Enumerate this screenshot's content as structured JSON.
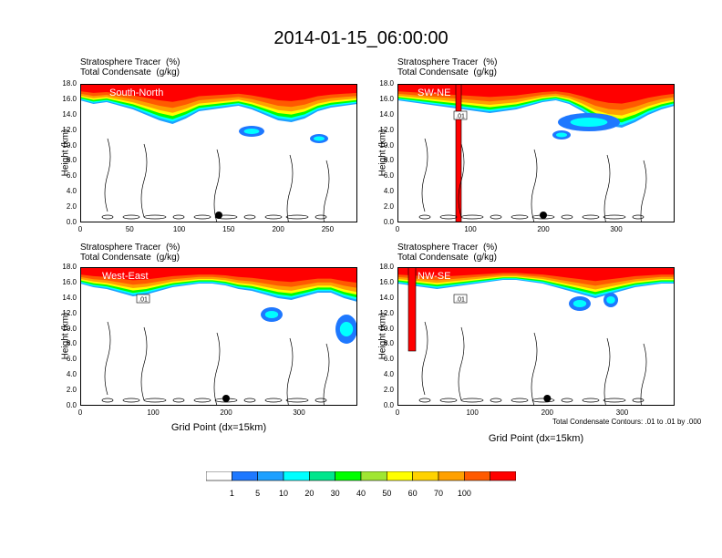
{
  "title": "2014-01-15_06:00:00",
  "panel_titles": {
    "line1": "Stratosphere Tracer",
    "line1_unit": "(%)",
    "line2": "Total Condensate",
    "line2_unit": "(g/kg)"
  },
  "y_axis_label": "Height (km)",
  "x_axis_label": "Grid Point (dx=15km)",
  "contour_note": "Total Condensate Contours: .01 to .01 by .000",
  "colorbar": {
    "labels": [
      "1",
      "5",
      "10",
      "20",
      "30",
      "40",
      "50",
      "60",
      "70",
      "100"
    ],
    "colors": [
      "#ffffff",
      "#1e78ff",
      "#1ea0ff",
      "#00ffff",
      "#00e68c",
      "#00ff00",
      "#a0e632",
      "#ffff00",
      "#ffd200",
      "#ffa000",
      "#ff5a00",
      "#ff0000"
    ]
  },
  "chart_data": [
    {
      "type": "heatmap",
      "region": "South-North",
      "yticks": [
        "0.0",
        "2.0",
        "4.0",
        "6.0",
        "8.0",
        "10.0",
        "12.0",
        "14.0",
        "16.0",
        "18.0"
      ],
      "xticks": [
        "0",
        "50",
        "100",
        "150",
        "200",
        "250"
      ],
      "xlim": [
        0,
        280
      ],
      "ylim": [
        0,
        18
      ],
      "contour_label": "",
      "marker_x": 140
    },
    {
      "type": "heatmap",
      "region": "SW-NE",
      "yticks": [
        "0.0",
        "2.0",
        "4.0",
        "6.0",
        "8.0",
        "10.0",
        "12.0",
        "14.0",
        "16.0",
        "18.0"
      ],
      "xticks": [
        "0",
        "100",
        "200",
        "300"
      ],
      "xlim": [
        0,
        380
      ],
      "ylim": [
        0,
        18
      ],
      "contour_label": ".01",
      "marker_x": 200
    },
    {
      "type": "heatmap",
      "region": "West-East",
      "yticks": [
        "0.0",
        "2.0",
        "4.0",
        "6.0",
        "8.0",
        "10.0",
        "12.0",
        "14.0",
        "16.0",
        "18.0"
      ],
      "xticks": [
        "0",
        "100",
        "200",
        "300"
      ],
      "xlim": [
        0,
        380
      ],
      "ylim": [
        0,
        18
      ],
      "contour_label": ".01",
      "marker_x": 200
    },
    {
      "type": "heatmap",
      "region": "NW-SE",
      "yticks": [
        "0.0",
        "2.0",
        "4.0",
        "6.0",
        "8.0",
        "10.0",
        "12.0",
        "14.0",
        "16.0",
        "18.0"
      ],
      "xticks": [
        "0",
        "100",
        "200",
        "300"
      ],
      "xlim": [
        0,
        370
      ],
      "ylim": [
        0,
        18
      ],
      "contour_label": ".01",
      "marker_x": 200
    }
  ]
}
